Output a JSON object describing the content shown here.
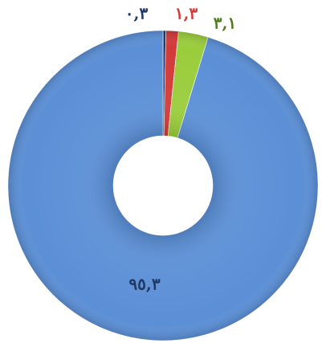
{
  "chart_data": {
    "type": "donut",
    "values": [
      0.3,
      1.3,
      3.1,
      95.3
    ],
    "value_labels": [
      "٠,٣",
      "١,٣",
      "٣,١",
      "٩٥,٣"
    ],
    "colors": [
      "#1f3864",
      "#d23a3a",
      "#9acd3c",
      "#5b8fd6"
    ]
  }
}
